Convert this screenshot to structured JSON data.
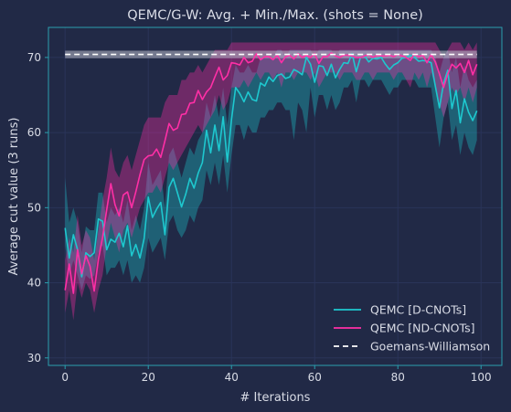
{
  "chart_data": {
    "type": "line",
    "title": "QEMC/G-W: Avg. + Min./Max. (shots = None)",
    "xlabel": "# Iterations",
    "ylabel": "Average cut value (3 runs)",
    "xlim": [
      -4,
      105
    ],
    "ylim": [
      29,
      74
    ],
    "xticks": [
      0,
      20,
      40,
      60,
      80,
      100
    ],
    "yticks": [
      30,
      40,
      50,
      60,
      70
    ],
    "grid": true,
    "legend_position": "lower-right",
    "colors": {
      "background": "#212946",
      "axes": "#2a9fae",
      "grid": "#2a3459",
      "d_cnots": "#1ec8cf",
      "nd_cnots": "#ff2fa6",
      "gw": "#ffffff",
      "gw_band": "#b9bccb"
    },
    "series": [
      {
        "name": "QEMC [D-CNOTs]",
        "style": "solid",
        "values": [
          47.3,
          43.3,
          46.4,
          44.4,
          40.8,
          44.0,
          43.5,
          44.0,
          48.5,
          48.2,
          44.4,
          45.8,
          45.4,
          46.6,
          44.8,
          47.6,
          43.6,
          45.1,
          43.3,
          45.9,
          51.4,
          48.7,
          49.8,
          50.7,
          46.4,
          52.7,
          53.9,
          52.0,
          50.1,
          51.8,
          53.9,
          52.6,
          54.6,
          56.0,
          60.3,
          57.3,
          61.0,
          57.6,
          62.1,
          56.1,
          61.7,
          66.0,
          65.2,
          64.1,
          65.4,
          64.4,
          64.2,
          66.6,
          66.2,
          67.4,
          66.8,
          67.6,
          67.8,
          67.2,
          67.4,
          68.4,
          68.1,
          67.7,
          70.0,
          69.1,
          66.7,
          68.9,
          68.8,
          67.6,
          69.1,
          67.3,
          68.4,
          69.3,
          69.2,
          70.5,
          68.1,
          70.0,
          70.2,
          69.4,
          69.9,
          69.8,
          70.0,
          69.1,
          68.4,
          69.0,
          69.3,
          69.9,
          70.0,
          70.3,
          70.0,
          69.5,
          69.6,
          69.5,
          69.3,
          66.2,
          63.3,
          66.6,
          68.3,
          63.2,
          65.6,
          61.3,
          64.5,
          62.7,
          61.6,
          62.9
        ],
        "min": [
          45.0,
          41.0,
          43.0,
          41.0,
          39.0,
          41.0,
          40.5,
          41.0,
          44.0,
          45.0,
          41.0,
          42.0,
          42.0,
          43.0,
          41.0,
          43.0,
          40.0,
          41.0,
          40.0,
          42.0,
          46.0,
          44.0,
          45.0,
          46.0,
          43.0,
          48.0,
          49.0,
          47.0,
          46.0,
          47.0,
          49.0,
          48.0,
          50.0,
          51.0,
          55.0,
          53.0,
          56.0,
          53.0,
          57.0,
          52.0,
          57.0,
          61.0,
          61.0,
          59.0,
          61.0,
          60.0,
          60.0,
          62.0,
          62.0,
          63.0,
          63.0,
          64.0,
          64.0,
          63.0,
          63.0,
          59.0,
          64.0,
          63.0,
          60.0,
          66.0,
          62.0,
          65.0,
          65.0,
          63.0,
          65.0,
          63.0,
          64.0,
          66.0,
          66.0,
          67.0,
          64.0,
          67.0,
          67.0,
          66.0,
          67.0,
          67.0,
          67.0,
          66.0,
          65.0,
          66.0,
          66.0,
          67.0,
          67.0,
          67.0,
          67.0,
          66.0,
          66.0,
          66.0,
          66.0,
          62.0,
          58.0,
          62.0,
          64.0,
          59.0,
          61.0,
          57.0,
          60.0,
          58.0,
          57.0,
          59.0
        ],
        "max": [
          54.0,
          48.0,
          50.0,
          48.0,
          44.0,
          47.5,
          47.0,
          47.0,
          52.0,
          52.0,
          48.0,
          50.0,
          49.0,
          50.0,
          48.0,
          51.0,
          47.0,
          49.0,
          47.0,
          50.0,
          56.0,
          53.0,
          54.0,
          55.0,
          50.0,
          57.0,
          58.0,
          56.0,
          54.0,
          56.0,
          58.0,
          57.0,
          59.0,
          60.0,
          64.0,
          62.0,
          65.0,
          62.0,
          66.0,
          61.0,
          66.0,
          69.0,
          68.0,
          68.0,
          69.0,
          68.0,
          68.0,
          70.0,
          70.0,
          70.0,
          70.0,
          71.0,
          71.0,
          70.0,
          71.0,
          71.0,
          71.0,
          71.0,
          71.0,
          71.0,
          70.0,
          71.0,
          71.0,
          71.0,
          71.0,
          70.0,
          71.0,
          71.0,
          71.0,
          71.0,
          71.0,
          71.0,
          71.0,
          71.0,
          71.0,
          71.0,
          71.0,
          71.0,
          71.0,
          71.0,
          71.0,
          71.0,
          71.0,
          71.0,
          71.0,
          71.0,
          71.0,
          71.0,
          71.0,
          70.0,
          68.0,
          70.0,
          71.0,
          68.0,
          70.0,
          66.0,
          69.0,
          67.0,
          66.0,
          67.0
        ]
      },
      {
        "name": "QEMC [ND-CNOTs]",
        "style": "solid",
        "values": [
          39.0,
          42.5,
          38.6,
          44.4,
          41.2,
          43.6,
          42.2,
          38.9,
          43.1,
          46.0,
          49.7,
          53.2,
          50.4,
          48.9,
          51.7,
          52.1,
          50.0,
          52.1,
          54.4,
          56.4,
          56.9,
          57.0,
          57.8,
          56.7,
          58.9,
          61.2,
          60.3,
          60.6,
          62.4,
          62.5,
          63.9,
          64.0,
          65.6,
          64.4,
          65.4,
          66.0,
          67.4,
          68.7,
          67.0,
          67.6,
          69.3,
          69.2,
          69.0,
          70.0,
          69.3,
          69.5,
          70.5,
          69.7,
          70.1,
          70.1,
          69.7,
          70.3,
          69.3,
          70.1,
          70.3,
          69.8,
          70.5,
          70.0,
          70.3,
          70.0,
          70.5,
          69.2,
          70.1,
          70.1,
          70.6,
          70.2,
          70.0,
          70.3,
          70.3,
          70.2,
          70.0,
          70.0,
          70.2,
          70.4,
          70.0,
          70.3,
          70.2,
          70.2,
          70.3,
          70.1,
          70.4,
          70.2,
          70.0,
          69.6,
          70.5,
          70.1,
          70.3,
          69.3,
          70.4,
          69.4,
          67.8,
          66.0,
          67.8,
          69.1,
          68.6,
          69.2,
          68.0,
          69.6,
          67.7,
          69.1
        ],
        "min": [
          36.0,
          39.0,
          35.0,
          40.0,
          38.0,
          40.0,
          39.0,
          36.0,
          39.0,
          41.0,
          45.0,
          48.0,
          46.0,
          44.0,
          47.0,
          48.0,
          46.0,
          48.0,
          50.0,
          51.0,
          52.0,
          52.0,
          53.0,
          52.0,
          54.0,
          56.0,
          55.0,
          56.0,
          57.0,
          58.0,
          59.0,
          60.0,
          61.0,
          60.0,
          61.0,
          62.0,
          63.0,
          65.0,
          63.0,
          64.0,
          66.0,
          66.0,
          66.0,
          67.0,
          66.0,
          67.0,
          68.0,
          67.0,
          68.0,
          68.0,
          67.0,
          68.0,
          66.0,
          68.0,
          68.0,
          67.0,
          68.0,
          68.0,
          68.0,
          67.0,
          68.0,
          66.0,
          67.0,
          68.0,
          68.0,
          68.0,
          67.0,
          68.0,
          68.0,
          68.0,
          67.0,
          67.0,
          68.0,
          68.0,
          67.0,
          68.0,
          68.0,
          68.0,
          68.0,
          67.0,
          68.0,
          68.0,
          67.0,
          66.0,
          68.0,
          67.0,
          68.0,
          66.0,
          68.0,
          66.0,
          64.0,
          62.0,
          64.0,
          66.0,
          65.0,
          66.0,
          64.0,
          66.0,
          64.0,
          66.0
        ],
        "max": [
          43.0,
          46.0,
          44.0,
          49.0,
          45.0,
          47.0,
          46.0,
          43.0,
          47.0,
          51.0,
          54.0,
          58.0,
          55.0,
          54.0,
          56.0,
          57.0,
          55.0,
          57.0,
          59.0,
          61.0,
          62.0,
          62.0,
          62.0,
          62.0,
          64.0,
          65.0,
          65.0,
          65.0,
          67.0,
          67.0,
          68.0,
          68.0,
          69.0,
          68.0,
          69.0,
          70.0,
          71.0,
          71.0,
          71.0,
          71.0,
          72.0,
          72.0,
          72.0,
          72.0,
          72.0,
          72.0,
          72.0,
          72.0,
          72.0,
          72.0,
          72.0,
          72.0,
          72.0,
          72.0,
          72.0,
          72.0,
          72.0,
          72.0,
          72.0,
          72.0,
          72.0,
          72.0,
          72.0,
          72.0,
          72.0,
          72.0,
          72.0,
          72.0,
          72.0,
          72.0,
          72.0,
          72.0,
          72.0,
          72.0,
          72.0,
          72.0,
          72.0,
          72.0,
          72.0,
          72.0,
          72.0,
          72.0,
          72.0,
          72.0,
          72.0,
          72.0,
          72.0,
          72.0,
          72.0,
          72.0,
          71.0,
          70.0,
          71.0,
          72.0,
          72.0,
          72.0,
          71.0,
          72.0,
          71.0,
          72.0
        ]
      },
      {
        "name": "Goemans-Williamson",
        "style": "dashed",
        "value": 70.4,
        "min": 69.9,
        "max": 70.9
      }
    ]
  }
}
